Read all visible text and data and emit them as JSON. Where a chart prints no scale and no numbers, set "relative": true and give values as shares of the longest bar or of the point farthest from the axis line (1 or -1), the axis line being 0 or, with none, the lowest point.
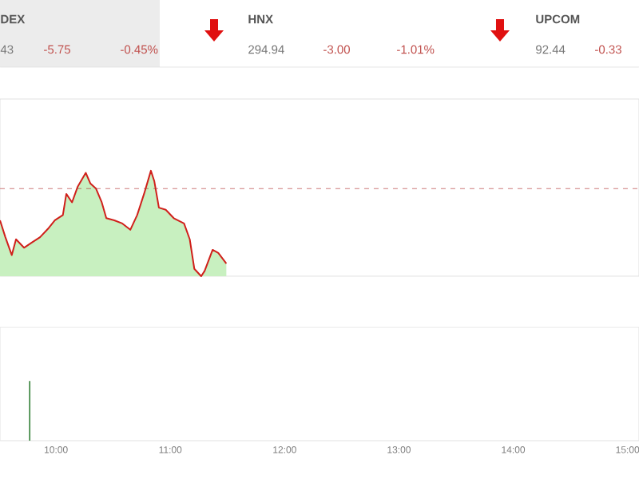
{
  "chart_data": [
    {
      "type": "other",
      "annotations": [
        "DEX",
        "43",
        "-5.75",
        "-0.45%",
        "HNX",
        "294.94",
        "-3.00",
        "-1.01%",
        "UPCOM",
        "92.44",
        "-0.33"
      ]
    },
    {
      "type": "area",
      "relative": true,
      "tick_labels": false,
      "xlim": [
        9.51,
        15.1
      ],
      "series": [
        {
          "color": "#c8f0c0",
          "x": [
            9.51,
            9.557,
            9.613,
            9.65,
            9.72,
            9.79,
            9.86,
            9.93,
            9.99,
            10.06,
            10.09,
            10.14,
            10.19,
            10.26,
            10.3,
            10.35,
            10.4,
            10.44,
            10.51,
            10.58,
            10.65,
            10.71,
            10.77,
            10.83,
            10.86,
            10.9,
            10.96,
            11.03,
            11.12,
            11.17,
            11.21,
            11.27,
            11.3,
            11.37,
            11.42,
            11.49
          ],
          "values": [
            0.53,
            0.37,
            0.2,
            0.35,
            0.27,
            0.32,
            0.37,
            0.45,
            0.53,
            0.58,
            0.78,
            0.7,
            0.85,
            0.98,
            0.88,
            0.83,
            0.7,
            0.55,
            0.53,
            0.5,
            0.44,
            0.58,
            0.78,
            1.0,
            0.9,
            0.65,
            0.63,
            0.55,
            0.5,
            0.35,
            0.07,
            0.0,
            0.05,
            0.25,
            0.22,
            0.12
          ]
        }
      ],
      "ref_lines": [
        {
          "axis": "y",
          "value": 0.83,
          "color": "#b03030",
          "line_style": "dashed"
        }
      ]
    },
    {
      "type": "bar",
      "relative": true,
      "tick_labels": "x",
      "xlim": [
        9.51,
        15.1
      ],
      "xticks": [
        {
          "value": 10,
          "label": "10:00"
        },
        {
          "value": 11,
          "label": "11:00"
        },
        {
          "value": 12,
          "label": "12:00"
        },
        {
          "value": 13,
          "label": "13:00"
        },
        {
          "value": 14,
          "label": "14:00"
        },
        {
          "value": 15,
          "label": "15:00"
        }
      ],
      "series": [
        {
          "color": "#2e7d32",
          "x": [
            9.77
          ],
          "values": [
            1
          ]
        }
      ]
    }
  ]
}
